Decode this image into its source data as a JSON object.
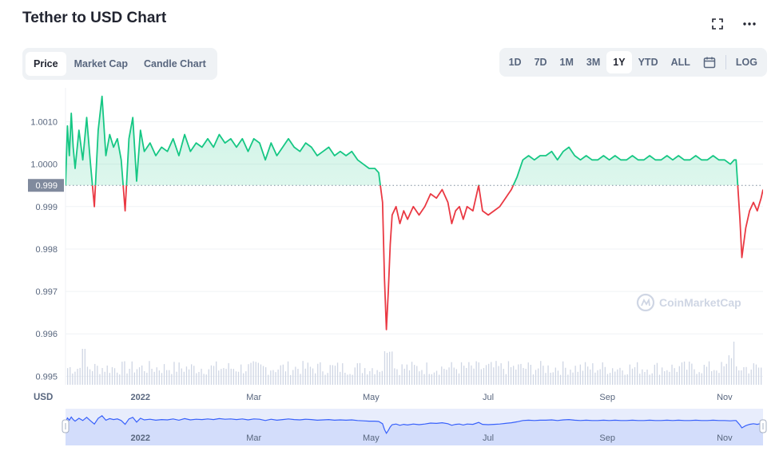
{
  "header": {
    "title": "Tether to USD Chart"
  },
  "tabs": [
    {
      "label": "Price",
      "active": true
    },
    {
      "label": "Market Cap",
      "active": false
    },
    {
      "label": "Candle Chart",
      "active": false
    }
  ],
  "ranges": [
    {
      "label": "1D",
      "active": false
    },
    {
      "label": "7D",
      "active": false
    },
    {
      "label": "1M",
      "active": false
    },
    {
      "label": "3M",
      "active": false
    },
    {
      "label": "1Y",
      "active": true
    },
    {
      "label": "YTD",
      "active": false
    },
    {
      "label": "ALL",
      "active": false
    }
  ],
  "log_label": "LOG",
  "watermark": "CoinMarketCap",
  "colors": {
    "up": "#16c784",
    "down": "#ea3943",
    "navigator": "#3861fb"
  },
  "chart_data": {
    "type": "area",
    "ylabel": "USD",
    "ylim": [
      0.9948,
      1.0018
    ],
    "yticks": [
      {
        "value": 1.001,
        "label": "1.0010"
      },
      {
        "value": 1.0,
        "label": "1.0000"
      },
      {
        "value": 0.999,
        "label": "0.999"
      },
      {
        "value": 0.998,
        "label": "0.998"
      },
      {
        "value": 0.997,
        "label": "0.997"
      },
      {
        "value": 0.996,
        "label": "0.996"
      },
      {
        "value": 0.995,
        "label": "0.995"
      }
    ],
    "baseline": {
      "value": 0.9995,
      "label": "0.999"
    },
    "xlim": [
      "2021-11-23",
      "2022-11-21"
    ],
    "xticks": [
      {
        "date": "2022-01-01",
        "label": "2022"
      },
      {
        "date": "2022-03-01",
        "label": "Mar"
      },
      {
        "date": "2022-05-01",
        "label": "May"
      },
      {
        "date": "2022-07-01",
        "label": "Jul"
      },
      {
        "date": "2022-09-01",
        "label": "Sep"
      },
      {
        "date": "2022-11-01",
        "label": "Nov"
      }
    ],
    "series": [
      {
        "points": [
          [
            "2021-11-23",
            0.9995
          ],
          [
            "2021-11-24",
            1.0009
          ],
          [
            "2021-11-25",
            1.0002
          ],
          [
            "2021-11-26",
            1.0012
          ],
          [
            "2021-11-27",
            1.0004
          ],
          [
            "2021-11-28",
            0.9999
          ],
          [
            "2021-11-30",
            1.0008
          ],
          [
            "2021-12-02",
            1.0001
          ],
          [
            "2021-12-04",
            1.0011
          ],
          [
            "2021-12-06",
            1.0
          ],
          [
            "2021-12-08",
            0.999
          ],
          [
            "2021-12-10",
            1.0008
          ],
          [
            "2021-12-12",
            1.0016
          ],
          [
            "2021-12-14",
            1.0002
          ],
          [
            "2021-12-16",
            1.0007
          ],
          [
            "2021-12-18",
            1.0004
          ],
          [
            "2021-12-20",
            1.0006
          ],
          [
            "2021-12-22",
            1.0001
          ],
          [
            "2021-12-24",
            0.9989
          ],
          [
            "2021-12-26",
            1.0006
          ],
          [
            "2021-12-28",
            1.0011
          ],
          [
            "2021-12-30",
            0.9996
          ],
          [
            "2022-01-01",
            1.0008
          ],
          [
            "2022-01-03",
            1.0003
          ],
          [
            "2022-01-06",
            1.0005
          ],
          [
            "2022-01-09",
            1.0002
          ],
          [
            "2022-01-12",
            1.0004
          ],
          [
            "2022-01-15",
            1.0003
          ],
          [
            "2022-01-18",
            1.0006
          ],
          [
            "2022-01-21",
            1.0002
          ],
          [
            "2022-01-24",
            1.0007
          ],
          [
            "2022-01-27",
            1.0003
          ],
          [
            "2022-01-30",
            1.0005
          ],
          [
            "2022-02-02",
            1.0004
          ],
          [
            "2022-02-05",
            1.0006
          ],
          [
            "2022-02-08",
            1.0004
          ],
          [
            "2022-02-11",
            1.0007
          ],
          [
            "2022-02-14",
            1.0005
          ],
          [
            "2022-02-17",
            1.0006
          ],
          [
            "2022-02-20",
            1.0004
          ],
          [
            "2022-02-23",
            1.0006
          ],
          [
            "2022-02-26",
            1.0003
          ],
          [
            "2022-03-01",
            1.0006
          ],
          [
            "2022-03-04",
            1.0005
          ],
          [
            "2022-03-07",
            1.0001
          ],
          [
            "2022-03-10",
            1.0005
          ],
          [
            "2022-03-13",
            1.0002
          ],
          [
            "2022-03-16",
            1.0004
          ],
          [
            "2022-03-19",
            1.0006
          ],
          [
            "2022-03-22",
            1.0004
          ],
          [
            "2022-03-25",
            1.0003
          ],
          [
            "2022-03-28",
            1.0005
          ],
          [
            "2022-03-31",
            1.0004
          ],
          [
            "2022-04-03",
            1.0002
          ],
          [
            "2022-04-06",
            1.0003
          ],
          [
            "2022-04-09",
            1.0004
          ],
          [
            "2022-04-12",
            1.0002
          ],
          [
            "2022-04-15",
            1.0003
          ],
          [
            "2022-04-18",
            1.0002
          ],
          [
            "2022-04-21",
            1.0003
          ],
          [
            "2022-04-24",
            1.0001
          ],
          [
            "2022-04-27",
            1.0
          ],
          [
            "2022-04-30",
            0.9999
          ],
          [
            "2022-05-03",
            0.9999
          ],
          [
            "2022-05-05",
            0.9998
          ],
          [
            "2022-05-07",
            0.9991
          ],
          [
            "2022-05-08",
            0.9973
          ],
          [
            "2022-05-09",
            0.9961
          ],
          [
            "2022-05-10",
            0.997
          ],
          [
            "2022-05-11",
            0.9981
          ],
          [
            "2022-05-12",
            0.9988
          ],
          [
            "2022-05-14",
            0.999
          ],
          [
            "2022-05-16",
            0.9986
          ],
          [
            "2022-05-18",
            0.9989
          ],
          [
            "2022-05-20",
            0.9987
          ],
          [
            "2022-05-23",
            0.999
          ],
          [
            "2022-05-26",
            0.9988
          ],
          [
            "2022-05-29",
            0.999
          ],
          [
            "2022-06-01",
            0.9993
          ],
          [
            "2022-06-04",
            0.9992
          ],
          [
            "2022-06-07",
            0.9994
          ],
          [
            "2022-06-10",
            0.9991
          ],
          [
            "2022-06-12",
            0.9986
          ],
          [
            "2022-06-14",
            0.9989
          ],
          [
            "2022-06-16",
            0.999
          ],
          [
            "2022-06-18",
            0.9987
          ],
          [
            "2022-06-20",
            0.999
          ],
          [
            "2022-06-23",
            0.9989
          ],
          [
            "2022-06-26",
            0.9995
          ],
          [
            "2022-06-28",
            0.9989
          ],
          [
            "2022-07-01",
            0.9988
          ],
          [
            "2022-07-04",
            0.9989
          ],
          [
            "2022-07-07",
            0.999
          ],
          [
            "2022-07-10",
            0.9992
          ],
          [
            "2022-07-13",
            0.9994
          ],
          [
            "2022-07-16",
            0.9997
          ],
          [
            "2022-07-19",
            1.0001
          ],
          [
            "2022-07-22",
            1.0002
          ],
          [
            "2022-07-25",
            1.0001
          ],
          [
            "2022-07-28",
            1.0002
          ],
          [
            "2022-07-31",
            1.0002
          ],
          [
            "2022-08-03",
            1.0003
          ],
          [
            "2022-08-06",
            1.0001
          ],
          [
            "2022-08-09",
            1.0003
          ],
          [
            "2022-08-12",
            1.0004
          ],
          [
            "2022-08-15",
            1.0002
          ],
          [
            "2022-08-18",
            1.0001
          ],
          [
            "2022-08-21",
            1.0002
          ],
          [
            "2022-08-24",
            1.0001
          ],
          [
            "2022-08-27",
            1.0001
          ],
          [
            "2022-08-30",
            1.0002
          ],
          [
            "2022-09-02",
            1.0001
          ],
          [
            "2022-09-05",
            1.0002
          ],
          [
            "2022-09-08",
            1.0001
          ],
          [
            "2022-09-11",
            1.0001
          ],
          [
            "2022-09-14",
            1.0002
          ],
          [
            "2022-09-17",
            1.0001
          ],
          [
            "2022-09-20",
            1.0001
          ],
          [
            "2022-09-23",
            1.0002
          ],
          [
            "2022-09-26",
            1.0001
          ],
          [
            "2022-09-29",
            1.0001
          ],
          [
            "2022-10-02",
            1.0002
          ],
          [
            "2022-10-05",
            1.0001
          ],
          [
            "2022-10-08",
            1.0002
          ],
          [
            "2022-10-11",
            1.0001
          ],
          [
            "2022-10-14",
            1.0001
          ],
          [
            "2022-10-17",
            1.0002
          ],
          [
            "2022-10-20",
            1.0001
          ],
          [
            "2022-10-23",
            1.0001
          ],
          [
            "2022-10-26",
            1.0002
          ],
          [
            "2022-10-29",
            1.0001
          ],
          [
            "2022-11-01",
            1.0001
          ],
          [
            "2022-11-04",
            1.0
          ],
          [
            "2022-11-06",
            1.0001
          ],
          [
            "2022-11-07",
            1.0001
          ],
          [
            "2022-11-09",
            0.9987
          ],
          [
            "2022-11-10",
            0.9978
          ],
          [
            "2022-11-12",
            0.9985
          ],
          [
            "2022-11-14",
            0.9989
          ],
          [
            "2022-11-16",
            0.9991
          ],
          [
            "2022-11-18",
            0.9989
          ],
          [
            "2022-11-20",
            0.9992
          ],
          [
            "2022-11-21",
            0.9994
          ]
        ]
      }
    ],
    "navigator_xticks": [
      "2022",
      "Mar",
      "May",
      "Jul",
      "Sep",
      "Nov"
    ]
  }
}
